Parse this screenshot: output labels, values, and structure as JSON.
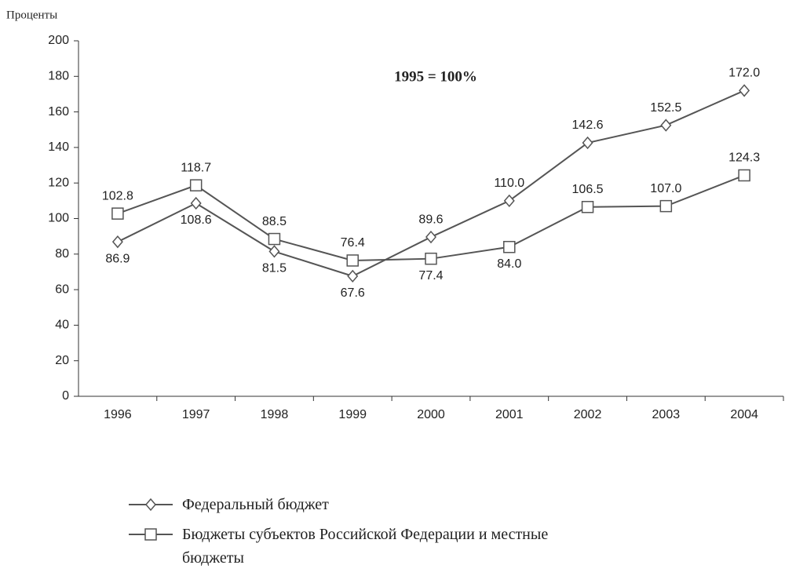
{
  "chart_data": {
    "type": "line",
    "y_label": "Проценты",
    "annotation": "1995 = 100%",
    "categories": [
      "1996",
      "1997",
      "1998",
      "1999",
      "2000",
      "2001",
      "2002",
      "2003",
      "2004"
    ],
    "series": [
      {
        "name": "Федеральный бюджет",
        "color": "#555555",
        "marker": "diamond",
        "values": [
          86.9,
          108.6,
          81.5,
          67.6,
          89.6,
          110.0,
          142.6,
          152.5,
          172.0
        ],
        "value_labels": [
          "86.9",
          "108.6",
          "81.5",
          "67.6",
          "89.6",
          "110.0",
          "142.6",
          "152.5",
          "172.0"
        ]
      },
      {
        "name": "Бюджеты субъектов Российской Федерации и местные бюджеты",
        "color": "#555555",
        "marker": "square",
        "values": [
          102.8,
          118.7,
          88.5,
          76.4,
          77.4,
          84.0,
          106.5,
          107.0,
          124.3
        ],
        "value_labels": [
          "102.8",
          "118.7",
          "88.5",
          "76.4",
          "77.4",
          "84.0",
          "106.5",
          "107.0",
          "124.3"
        ]
      }
    ],
    "ylim": [
      0,
      200
    ],
    "yticks": [
      0,
      20,
      40,
      60,
      80,
      100,
      120,
      140,
      160,
      180,
      200
    ],
    "grid": false,
    "legend": "bottom"
  }
}
